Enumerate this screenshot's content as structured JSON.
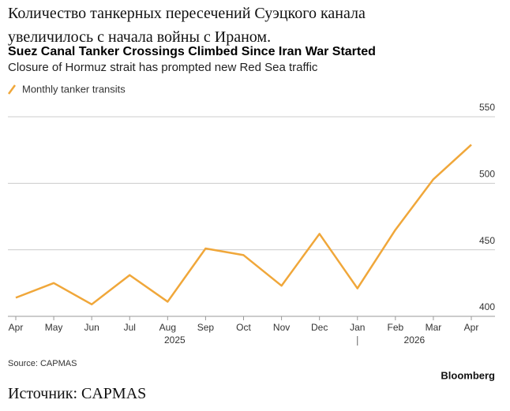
{
  "header": {
    "title": "Количество танкерных пересечений Суэцкого канала увеличилось с начала войны с Ираном."
  },
  "chart_data": {
    "type": "line",
    "title": "Suez Canal Tanker Crossings Climbed Since Iran War Started",
    "subtitle": "Closure of Hormuz strait has prompted new Red Sea traffic",
    "categories": [
      "Apr",
      "May",
      "Jun",
      "Jul",
      "Aug",
      "Sep",
      "Oct",
      "Nov",
      "Dec",
      "Jan",
      "Feb",
      "Mar",
      "Apr"
    ],
    "years": [
      "2025",
      "2026"
    ],
    "series": [
      {
        "name": "Monthly tanker transits",
        "color": "#f0a73a",
        "values": [
          414,
          425,
          409,
          431,
          411,
          451,
          446,
          423,
          462,
          421,
          465,
          503,
          529
        ]
      }
    ],
    "ylim": [
      400,
      550
    ],
    "yticks": [
      400,
      450,
      500,
      550
    ],
    "grid": true,
    "legend": "top-left",
    "source": "Source: CAPMAS",
    "credit": "Bloomberg"
  },
  "footer": {
    "source": "Источник: CAPMAS"
  }
}
